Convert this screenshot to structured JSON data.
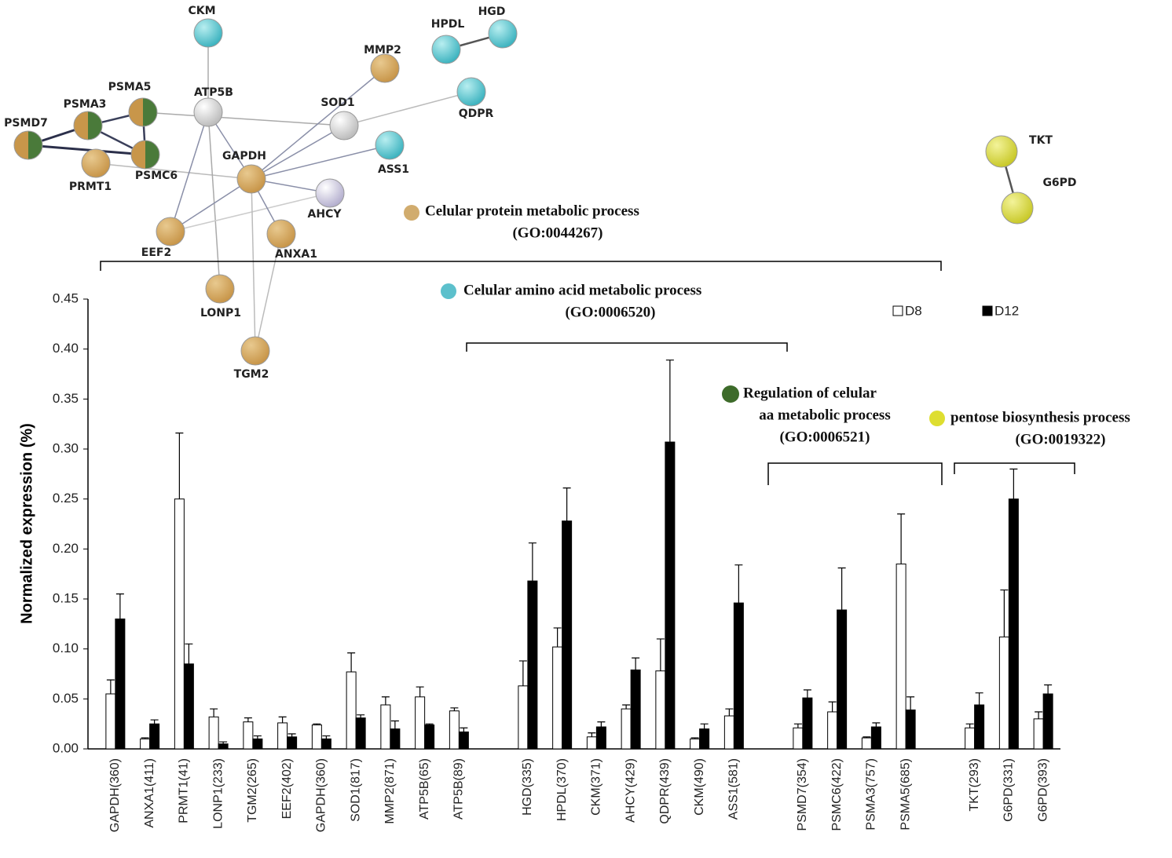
{
  "chart_data": {
    "type": "bar",
    "y_label": "Normalized expression (%)",
    "categories": [
      "GAPDH(360)",
      "ANXA1(411)",
      "PRMT1(41)",
      "LONP1(233)",
      "TGM2(265)",
      "EEF2(402)",
      "GAPDH(360)",
      "SOD1(817)",
      "MMP2(871)",
      "ATP5B(65)",
      "ATP5B(89)",
      null,
      "HGD(335)",
      "HPDL(370)",
      "CKM(371)",
      "AHCY(429)",
      "QDPR(439)",
      "CKM(490)",
      "ASS1(581)",
      null,
      "PSMD7(354)",
      "PSMC6(422)",
      "PSMA3(757)",
      "PSMA5(685)",
      null,
      "TKT(293)",
      "G6PD(331)",
      "G6PD(393)"
    ],
    "series": [
      {
        "name": "D8",
        "color": "#ffffff",
        "values": [
          0.055,
          0.01,
          0.25,
          0.032,
          0.027,
          0.026,
          0.024,
          0.077,
          0.044,
          0.052,
          0.038,
          null,
          0.063,
          0.102,
          0.012,
          0.04,
          0.078,
          0.01,
          0.033,
          null,
          0.021,
          0.037,
          0.011,
          0.185,
          null,
          0.021,
          0.112,
          0.03
        ],
        "errors": [
          0.014,
          0.001,
          0.066,
          0.008,
          0.004,
          0.006,
          0.001,
          0.019,
          0.008,
          0.01,
          0.003,
          null,
          0.025,
          0.019,
          0.004,
          0.004,
          0.032,
          0.001,
          0.007,
          null,
          0.004,
          0.01,
          0.001,
          0.05,
          null,
          0.004,
          0.047,
          0.007
        ]
      },
      {
        "name": "D12",
        "color": "#000000",
        "values": [
          0.13,
          0.025,
          0.085,
          0.005,
          0.01,
          0.012,
          0.01,
          0.031,
          0.02,
          0.024,
          0.017,
          null,
          0.168,
          0.228,
          0.022,
          0.079,
          0.307,
          0.02,
          0.146,
          null,
          0.051,
          0.139,
          0.022,
          0.039,
          null,
          0.044,
          0.25,
          0.055
        ],
        "errors": [
          0.025,
          0.004,
          0.02,
          0.002,
          0.003,
          0.003,
          0.003,
          0.003,
          0.008,
          0.001,
          0.004,
          null,
          0.038,
          0.033,
          0.005,
          0.012,
          0.082,
          0.005,
          0.038,
          null,
          0.008,
          0.042,
          0.004,
          0.013,
          null,
          0.012,
          0.03,
          0.009
        ]
      }
    ],
    "ylim": [
      0,
      0.45
    ],
    "yticks": [
      {
        "value": 0,
        "label": "0.00"
      },
      {
        "value": 0.05,
        "label": "0.05"
      },
      {
        "value": 0.1,
        "label": "0.10"
      },
      {
        "value": 0.15,
        "label": "0.15"
      },
      {
        "value": 0.2,
        "label": "0.20"
      },
      {
        "value": 0.25,
        "label": "0.25"
      },
      {
        "value": 0.3,
        "label": "0.30"
      },
      {
        "value": 0.35,
        "label": "0.35"
      },
      {
        "value": 0.4,
        "label": "0.40"
      },
      {
        "value": 0.45,
        "label": "0.45"
      }
    ],
    "grid": false,
    "legend": "top-right"
  },
  "annotations": [
    [
      "Celular protein metabolic process",
      "(GO:0044267)"
    ],
    [
      "Celular amino acid metabolic process",
      "(GO:0006520)"
    ],
    [
      "Regulation of celular",
      "aa metabolic process",
      "(GO:0006521)"
    ],
    [
      "pentose biosynthesis process",
      "(GO:0019322)"
    ]
  ],
  "network": {
    "nodes": [
      {
        "label": "CKM"
      },
      {
        "label": "HPDL"
      },
      {
        "label": "HGD"
      },
      {
        "label": "MMP2"
      },
      {
        "label": "QDPR"
      },
      {
        "label": "PSMA5"
      },
      {
        "label": "ATP5B"
      },
      {
        "label": "SOD1"
      },
      {
        "label": "PSMA3"
      },
      {
        "label": "PSMD7"
      },
      {
        "label": "PSMC6"
      },
      {
        "label": "ASS1"
      },
      {
        "label": "PRMT1"
      },
      {
        "label": "GAPDH"
      },
      {
        "label": "AHCY"
      },
      {
        "label": "EEF2"
      },
      {
        "label": "ANXA1"
      },
      {
        "label": "LONP1"
      },
      {
        "label": "TGM2"
      },
      {
        "label": "TKT"
      },
      {
        "label": "G6PD"
      }
    ]
  }
}
